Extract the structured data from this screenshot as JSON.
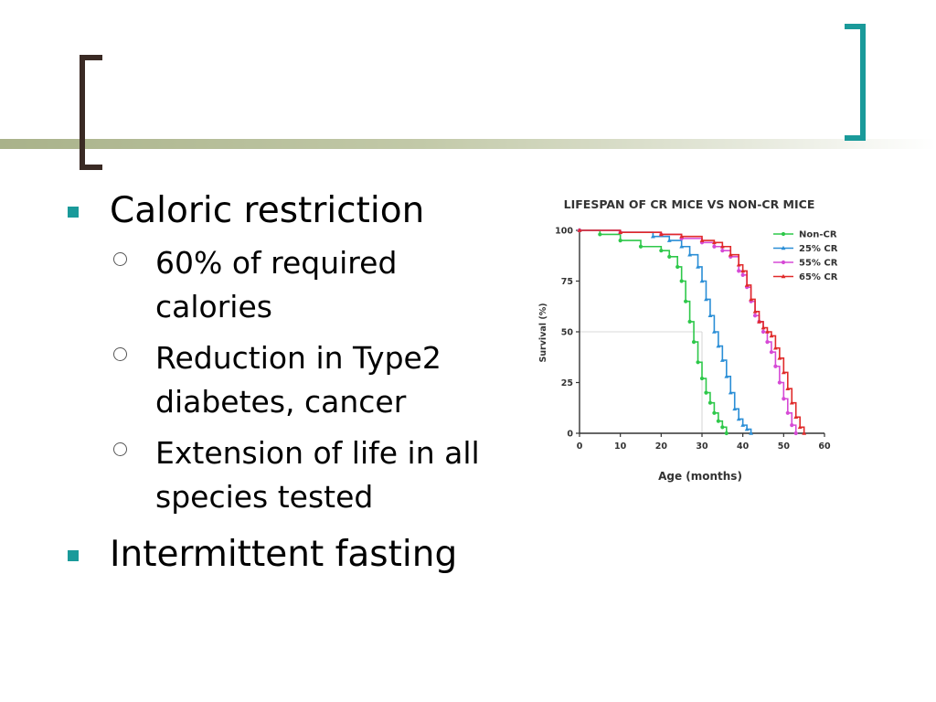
{
  "colors": {
    "accent": "#1a9a9a",
    "bracket_left": "#3a2a24",
    "bracket_right": "#1a9a9a"
  },
  "bullets": [
    {
      "text": "Caloric restriction",
      "sub": [
        "60% of required calories",
        "Reduction in Type2 diabetes, cancer",
        "Extension of life in all species tested"
      ]
    },
    {
      "text": "Intermittent fasting",
      "sub": []
    }
  ],
  "chart_data": {
    "type": "line",
    "title": "LIFESPAN OF CR MICE VS NON-CR MICE",
    "xlabel": "Age (months)",
    "ylabel": "Survival (%)",
    "xlim": [
      0,
      60
    ],
    "ylim": [
      0,
      100
    ],
    "xticks": [
      0,
      10,
      20,
      30,
      40,
      50,
      60
    ],
    "yticks": [
      0,
      25,
      50,
      75,
      100
    ],
    "legend_position": "top-right",
    "series": [
      {
        "name": "Non-CR",
        "color": "#2ec84a",
        "marker": "circle",
        "x": [
          0,
          5,
          10,
          15,
          20,
          22,
          24,
          25,
          26,
          27,
          28,
          29,
          30,
          31,
          32,
          33,
          34,
          35,
          36
        ],
        "y": [
          100,
          98,
          95,
          92,
          90,
          87,
          82,
          75,
          65,
          55,
          45,
          35,
          27,
          20,
          15,
          10,
          6,
          3,
          0
        ]
      },
      {
        "name": "25% CR",
        "color": "#2a8ed6",
        "marker": "triangle",
        "x": [
          0,
          10,
          18,
          22,
          25,
          27,
          29,
          30,
          31,
          32,
          33,
          34,
          35,
          36,
          37,
          38,
          39,
          40,
          41,
          42
        ],
        "y": [
          100,
          99,
          97,
          95,
          92,
          88,
          82,
          75,
          66,
          58,
          50,
          43,
          36,
          28,
          20,
          12,
          7,
          4,
          2,
          0
        ]
      },
      {
        "name": "55% CR",
        "color": "#d64ad6",
        "marker": "circle",
        "x": [
          0,
          10,
          20,
          25,
          30,
          33,
          35,
          37,
          39,
          40,
          41,
          42,
          43,
          44,
          45,
          46,
          47,
          48,
          49,
          50,
          51,
          52,
          53
        ],
        "y": [
          100,
          99,
          98,
          96,
          94,
          92,
          90,
          87,
          80,
          78,
          72,
          65,
          58,
          55,
          50,
          45,
          40,
          33,
          25,
          17,
          10,
          4,
          0
        ]
      },
      {
        "name": "65% CR",
        "color": "#e02a2a",
        "marker": "triangle",
        "x": [
          0,
          10,
          20,
          25,
          30,
          33,
          35,
          37,
          39,
          40,
          41,
          42,
          43,
          44,
          45,
          46,
          47,
          48,
          49,
          50,
          51,
          52,
          53,
          54,
          55
        ],
        "y": [
          100,
          99,
          98,
          97,
          95,
          94,
          92,
          88,
          83,
          80,
          73,
          66,
          60,
          55,
          52,
          50,
          48,
          42,
          37,
          30,
          22,
          15,
          8,
          3,
          0
        ]
      }
    ]
  }
}
